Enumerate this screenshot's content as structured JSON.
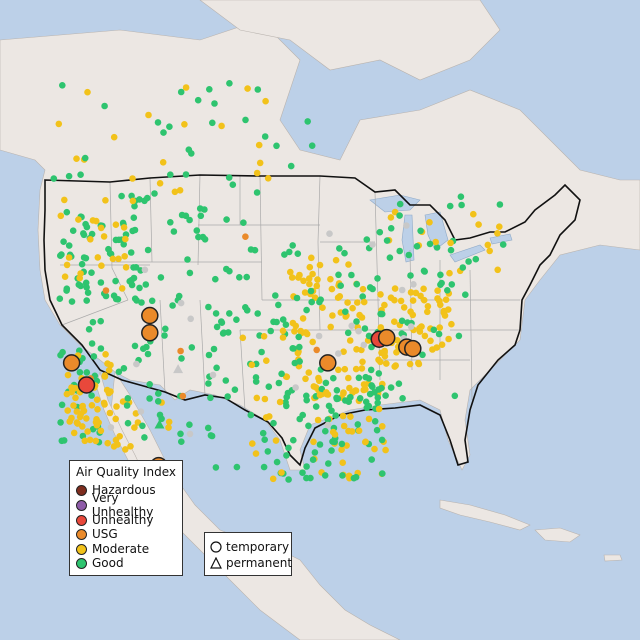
{
  "legend": {
    "title": "Air Quality Index",
    "categories": [
      {
        "label": "Hazardous",
        "color": "#7e2d1e"
      },
      {
        "label": "Very Unhealthy",
        "color": "#8e5ba8"
      },
      {
        "label": "Unhealthy",
        "color": "#e8483b"
      },
      {
        "label": "USG",
        "color": "#ea8a2a"
      },
      {
        "label": "Moderate",
        "color": "#f2c21a"
      },
      {
        "label": "Good",
        "color": "#2ec46f"
      }
    ],
    "types": [
      {
        "label": "temporary",
        "shape": "circle"
      },
      {
        "label": "permanent",
        "shape": "triangle"
      }
    ]
  },
  "colors": {
    "ocean": "#bcd0e8",
    "land": "#ece7e3",
    "state_border": "#aaaaaa",
    "country_border": "#111111",
    "no_data": "#c8c8c8"
  },
  "map_data": {
    "projection": "lon-lat linear",
    "large_monitors": [
      {
        "category": "USG",
        "lon": -122.3,
        "lat": 38.3
      },
      {
        "category": "Unhealthy",
        "lon": -120.3,
        "lat": 36.9
      },
      {
        "category": "USG",
        "lon": -111.8,
        "lat": 41.3
      },
      {
        "category": "USG",
        "lon": -111.8,
        "lat": 40.2
      },
      {
        "category": "USG",
        "lon": -110.6,
        "lat": 31.8
      },
      {
        "category": "USG",
        "lon": -87.9,
        "lat": 38.3
      },
      {
        "category": "Unhealthy",
        "lon": -81.0,
        "lat": 39.8
      },
      {
        "category": "USG",
        "lon": -80.0,
        "lat": 39.9
      },
      {
        "category": "USG",
        "lon": -77.3,
        "lat": 39.3
      },
      {
        "category": "USG",
        "lon": -76.5,
        "lat": 39.2
      }
    ],
    "clusters": [
      {
        "category": "Good",
        "lon": [
          -124,
          -113
        ],
        "lat": [
          42,
          49
        ],
        "count": 70
      },
      {
        "category": "Moderate",
        "lon": [
          -124,
          -114
        ],
        "lat": [
          43,
          49
        ],
        "count": 25
      },
      {
        "category": "Good",
        "lon": [
          -113,
          -97
        ],
        "lat": [
          40,
          49
        ],
        "count": 45
      },
      {
        "category": "Good",
        "lon": [
          -124,
          -118
        ],
        "lat": [
          33,
          41
        ],
        "count": 30
      },
      {
        "category": "Moderate",
        "lon": [
          -123,
          -117
        ],
        "lat": [
          33,
          39
        ],
        "count": 55
      },
      {
        "category": "Moderate",
        "lon": [
          -117,
          -109
        ],
        "lat": [
          31,
          36
        ],
        "count": 20
      },
      {
        "category": "Good",
        "lon": [
          -116,
          -103
        ],
        "lat": [
          32,
          40
        ],
        "count": 30
      },
      {
        "category": "Good",
        "lon": [
          -104,
          -93
        ],
        "lat": [
          28,
          42
        ],
        "count": 45
      },
      {
        "category": "Moderate",
        "lon": [
          -100,
          -90
        ],
        "lat": [
          29,
          41
        ],
        "count": 20
      },
      {
        "category": "Moderate",
        "lon": [
          -94,
          -83
        ],
        "lat": [
          36,
          45
        ],
        "count": 80
      },
      {
        "category": "Good",
        "lon": [
          -95,
          -81
        ],
        "lat": [
          30,
          46
        ],
        "count": 70
      },
      {
        "category": "Moderate",
        "lon": [
          -90,
          -80
        ],
        "lat": [
          31,
          37
        ],
        "count": 45
      },
      {
        "category": "Good",
        "lon": [
          -91,
          -80
        ],
        "lat": [
          30,
          37
        ],
        "count": 40
      },
      {
        "category": "Moderate",
        "lon": [
          -84,
          -71
        ],
        "lat": [
          38,
          43
        ],
        "count": 70
      },
      {
        "category": "Good",
        "lon": [
          -83,
          -69
        ],
        "lat": [
          36,
          47
        ],
        "count": 40
      },
      {
        "category": "Good",
        "lon": [
          -83,
          -80
        ],
        "lat": [
          26,
          31
        ],
        "count": 18
      },
      {
        "category": "Moderate",
        "lon": [
          -125,
          -95
        ],
        "lat": [
          49,
          56
        ],
        "count": 20
      },
      {
        "category": "Good",
        "lon": [
          -125,
          -90
        ],
        "lat": [
          49,
          56
        ],
        "count": 30
      },
      {
        "category": "Moderate",
        "lon": [
          -80,
          -64
        ],
        "lat": [
          43,
          48
        ],
        "count": 18
      },
      {
        "category": "Good",
        "lon": [
          -80,
          -64
        ],
        "lat": [
          43,
          49
        ],
        "count": 18
      },
      {
        "category": "USG",
        "lon": [
          -125,
          -75
        ],
        "lat": [
          35,
          48
        ],
        "count": 6
      },
      {
        "category": "no-data",
        "lon": [
          -118,
          -75
        ],
        "lat": [
          33,
          49
        ],
        "count": 22
      }
    ],
    "permanent_monitors": [
      {
        "category": "Good",
        "lon": -110.5,
        "lat": 34.4
      },
      {
        "category": "no-data",
        "lon": -108.0,
        "lat": 37.9
      }
    ]
  }
}
